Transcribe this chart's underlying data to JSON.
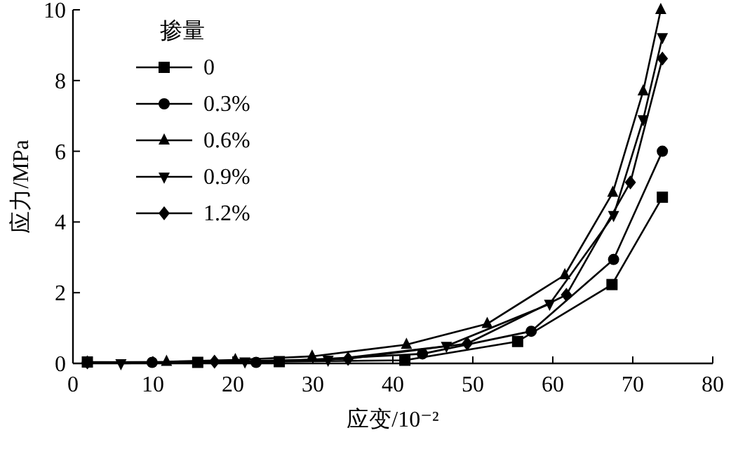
{
  "chart_data": {
    "type": "line",
    "xlabel": "应变/10⁻²",
    "ylabel": "应力/MPa",
    "legend_title": "掺量",
    "legend": "top left",
    "xlim": [
      0,
      80
    ],
    "ylim": [
      0,
      10
    ],
    "xticks": [
      0,
      10,
      20,
      30,
      40,
      50,
      60,
      70,
      80
    ],
    "yticks": [
      0,
      2,
      4,
      6,
      8,
      10
    ],
    "series": [
      {
        "name": "0",
        "color": "#000000",
        "marker": "square",
        "x": [
          1.8,
          15.6,
          25.8,
          41.5,
          55.6,
          67.4,
          73.7
        ],
        "values": [
          0.04,
          0.03,
          0.05,
          0.09,
          0.62,
          2.23,
          4.7
        ]
      },
      {
        "name": "0.3%",
        "color": "#000000",
        "marker": "circle",
        "x": [
          1.8,
          9.9,
          22.9,
          43.7,
          57.3,
          67.6,
          73.7
        ],
        "values": [
          0.03,
          0.03,
          0.03,
          0.27,
          0.91,
          2.94,
          6.0
        ]
      },
      {
        "name": "0.6%",
        "color": "#000000",
        "marker": "triangle",
        "x": [
          11.7,
          20.3,
          29.9,
          41.7,
          51.8,
          61.5,
          67.5,
          71.3,
          73.5
        ],
        "values": [
          0.05,
          0.1,
          0.2,
          0.53,
          1.12,
          2.5,
          4.83,
          7.7,
          10.0
        ]
      },
      {
        "name": "0.9%",
        "color": "#000000",
        "marker": "triangle-down",
        "x": [
          6.0,
          21.5,
          31.9,
          46.7,
          59.6,
          67.6,
          71.3,
          73.7
        ],
        "values": [
          0.0,
          0.05,
          0.1,
          0.49,
          1.68,
          4.19,
          6.9,
          9.22
        ]
      },
      {
        "name": "1.2%",
        "color": "#000000",
        "marker": "diamond",
        "x": [
          1.8,
          17.7,
          34.4,
          49.3,
          61.7,
          69.7,
          73.7
        ],
        "values": [
          0.03,
          0.05,
          0.13,
          0.56,
          1.94,
          5.12,
          8.62
        ]
      }
    ]
  }
}
